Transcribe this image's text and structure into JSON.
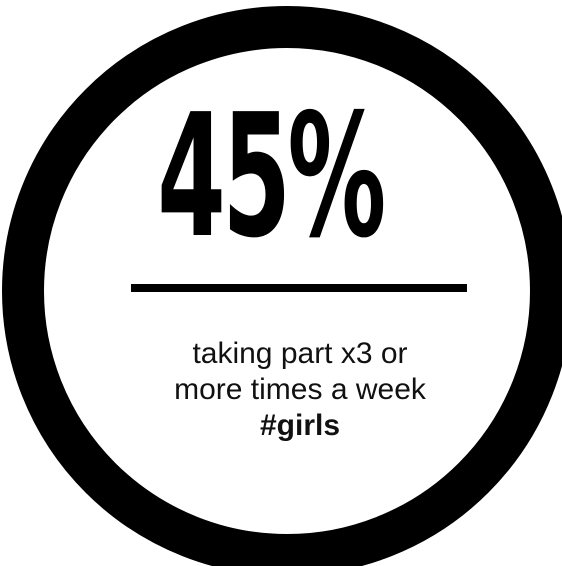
{
  "stat": {
    "value_text": "45%",
    "value_percent": 45
  },
  "caption": {
    "line1": "taking part x3 or",
    "line2": "more times a week",
    "hashtag": "#girls"
  },
  "colors": {
    "ring": "#000000",
    "background": "#ffffff",
    "text": "#000000"
  }
}
